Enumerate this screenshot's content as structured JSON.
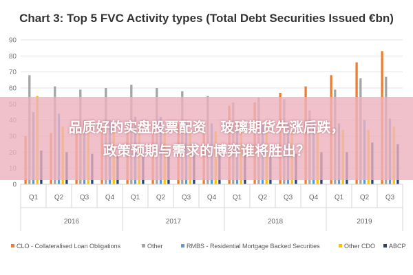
{
  "chart_data": {
    "type": "bar",
    "title": "Chart 3: Top 5 FVC Activity types (Total Debt Securities Issued €bn)",
    "ylim": [
      0,
      90
    ],
    "yticks": [
      0,
      10,
      20,
      30,
      40,
      50,
      60,
      70,
      80,
      90
    ],
    "grid": true,
    "legend_position": "bottom",
    "categories": [
      "Q1",
      "Q2",
      "Q3",
      "Q4",
      "Q1",
      "Q2",
      "Q3",
      "Q4",
      "Q1",
      "Q2",
      "Q3",
      "Q4",
      "Q1",
      "Q2",
      "Q3"
    ],
    "years": [
      {
        "label": "2016",
        "span": 4
      },
      {
        "label": "2017",
        "span": 4
      },
      {
        "label": "2018",
        "span": 4
      },
      {
        "label": "2019",
        "span": 3
      }
    ],
    "series": [
      {
        "name": "CLO - Collateralised Loan Obligations",
        "color": "#ED7D31",
        "values": [
          30,
          32,
          34,
          35,
          36,
          37,
          38,
          39,
          49,
          51,
          57,
          61,
          68,
          76,
          83
        ]
      },
      {
        "name": "Other",
        "color": "#A5A5A5",
        "values": [
          68,
          61,
          59,
          60,
          62,
          60,
          58,
          55,
          51,
          54,
          53,
          46,
          59,
          66,
          67
        ]
      },
      {
        "name": "RMBS - Residential Mortgage Backed Securities",
        "color": "#5B9BD5",
        "values": [
          45,
          44,
          40,
          40,
          42,
          42,
          40,
          38,
          37,
          37,
          38,
          38,
          38,
          40,
          41
        ]
      },
      {
        "name": "Other CDO",
        "color": "#FFC000",
        "values": [
          55,
          36,
          34,
          33,
          34,
          33,
          33,
          33,
          34,
          33,
          34,
          34,
          34,
          34,
          36
        ]
      },
      {
        "name": "ABCP",
        "color": "#264478",
        "values": [
          21,
          20,
          19,
          18,
          18,
          18,
          18,
          18,
          19,
          18,
          19,
          20,
          20,
          26,
          25
        ]
      }
    ]
  },
  "overlay": {
    "line1": "品质好的实盘股票配资 ​ ​ 玻璃期货先涨后跌，",
    "line2": "政策预期与需求的博弈谁将胜出？"
  }
}
